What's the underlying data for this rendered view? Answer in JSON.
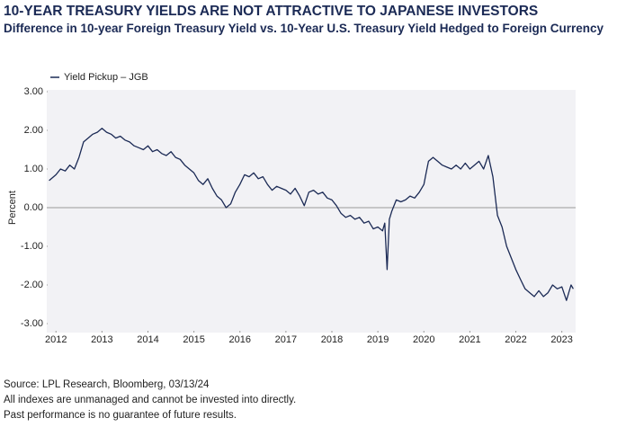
{
  "chart_data": {
    "type": "line",
    "title": "10-YEAR TREASURY YIELDS ARE NOT ATTRACTIVE TO JAPANESE INVESTORS",
    "subtitle": "Difference in 10-year Foreign Treasury Yield vs. 10-Year U.S. Treasury Yield Hedged to Foreign Currency",
    "y_label": "Percent",
    "legend": "top-left",
    "x": [
      2011.85,
      2012.0,
      2012.1,
      2012.2,
      2012.3,
      2012.4,
      2012.5,
      2012.6,
      2012.7,
      2012.8,
      2012.9,
      2013.0,
      2013.1,
      2013.2,
      2013.3,
      2013.4,
      2013.5,
      2013.6,
      2013.7,
      2013.8,
      2013.9,
      2014.0,
      2014.1,
      2014.2,
      2014.3,
      2014.4,
      2014.5,
      2014.6,
      2014.7,
      2014.8,
      2014.9,
      2015.0,
      2015.1,
      2015.2,
      2015.3,
      2015.4,
      2015.5,
      2015.6,
      2015.7,
      2015.8,
      2015.9,
      2016.0,
      2016.1,
      2016.2,
      2016.3,
      2016.4,
      2016.5,
      2016.6,
      2016.7,
      2016.8,
      2016.9,
      2017.0,
      2017.1,
      2017.2,
      2017.3,
      2017.4,
      2017.5,
      2017.6,
      2017.7,
      2017.8,
      2017.9,
      2018.0,
      2018.1,
      2018.2,
      2018.3,
      2018.4,
      2018.5,
      2018.6,
      2018.7,
      2018.8,
      2018.9,
      2019.0,
      2019.1,
      2019.15,
      2019.2,
      2019.25,
      2019.3,
      2019.4,
      2019.5,
      2019.6,
      2019.7,
      2019.8,
      2019.9,
      2020.0,
      2020.05,
      2020.1,
      2020.2,
      2020.3,
      2020.4,
      2020.5,
      2020.6,
      2020.7,
      2020.8,
      2020.9,
      2021.0,
      2021.1,
      2021.2,
      2021.3,
      2021.4,
      2021.5,
      2021.6,
      2021.7,
      2021.8,
      2021.9,
      2022.0,
      2022.1,
      2022.2,
      2022.3,
      2022.4,
      2022.5,
      2022.6,
      2022.7,
      2022.8,
      2022.9,
      2023.0,
      2023.1,
      2023.2,
      2023.25
    ],
    "series": [
      {
        "name": "Yield Pickup – JGB",
        "color": "#1b2a55",
        "values": [
          0.7,
          0.85,
          1.0,
          0.95,
          1.1,
          1.0,
          1.3,
          1.7,
          1.8,
          1.9,
          1.95,
          2.05,
          1.95,
          1.9,
          1.8,
          1.85,
          1.75,
          1.7,
          1.6,
          1.55,
          1.5,
          1.6,
          1.45,
          1.5,
          1.4,
          1.35,
          1.45,
          1.3,
          1.25,
          1.1,
          1.0,
          0.9,
          0.7,
          0.6,
          0.75,
          0.5,
          0.3,
          0.2,
          0.0,
          0.1,
          0.4,
          0.6,
          0.85,
          0.8,
          0.9,
          0.75,
          0.8,
          0.6,
          0.45,
          0.55,
          0.5,
          0.45,
          0.35,
          0.5,
          0.3,
          0.05,
          0.4,
          0.45,
          0.35,
          0.4,
          0.25,
          0.2,
          0.05,
          -0.15,
          -0.25,
          -0.2,
          -0.3,
          -0.25,
          -0.4,
          -0.35,
          -0.55,
          -0.5,
          -0.6,
          -0.4,
          -1.6,
          -0.3,
          -0.1,
          0.2,
          0.15,
          0.2,
          0.3,
          0.25,
          0.4,
          0.6,
          0.9,
          1.2,
          1.3,
          1.2,
          1.1,
          1.05,
          1.0,
          1.1,
          1.0,
          1.15,
          1.0,
          1.1,
          1.2,
          1.0,
          1.35,
          0.8,
          -0.2,
          -0.5,
          -1.0,
          -1.3,
          -1.6,
          -1.85,
          -2.1,
          -2.2,
          -2.3,
          -2.15,
          -2.3,
          -2.2,
          -2.0,
          -2.1,
          -2.05,
          -2.4,
          -2.0,
          -2.1
        ]
      }
    ],
    "xlim": [
      2011.8,
      2023.3
    ],
    "xticks": [
      2012,
      2013,
      2014,
      2015,
      2016,
      2017,
      2018,
      2019,
      2020,
      2021,
      2022,
      2023
    ],
    "ylim": [
      -3,
      3
    ],
    "yticks": [
      {
        "value": 3,
        "label": "3.00"
      },
      {
        "value": 2,
        "label": "2.00"
      },
      {
        "value": 1,
        "label": "1.00"
      },
      {
        "value": 0,
        "label": "0.00"
      },
      {
        "value": -1,
        "label": "-1.00"
      },
      {
        "value": -2,
        "label": "-2.00"
      },
      {
        "value": -3,
        "label": "-3.00"
      }
    ],
    "footnotes": [
      "Source: LPL Research, Bloomberg, 03/13/24",
      "All indexes are unmanaged and cannot be invested into directly.",
      "Past performance is no guarantee of future results."
    ]
  }
}
